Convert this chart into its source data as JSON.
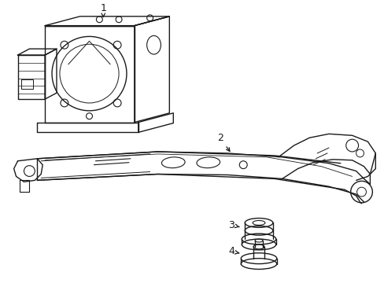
{
  "background_color": "#ffffff",
  "line_color": "#1a1a1a",
  "line_width": 1.0,
  "label_fontsize": 9
}
